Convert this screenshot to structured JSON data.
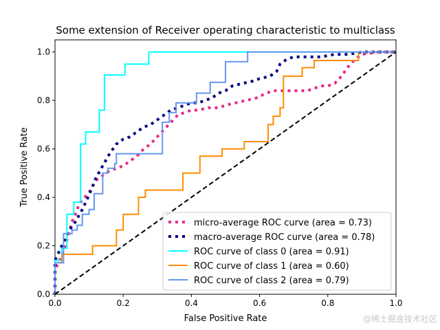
{
  "chart_data": {
    "type": "line",
    "title": "Some extension of Receiver operating characteristic to multiclass",
    "xlabel": "False Positive Rate",
    "ylabel": "True Positive Rate",
    "xlim": [
      0,
      1
    ],
    "ylim": [
      0,
      1.05
    ],
    "xticks": [
      "0.0",
      "0.2",
      "0.4",
      "0.6",
      "0.8",
      "1.0"
    ],
    "yticks": [
      "0.0",
      "0.2",
      "0.4",
      "0.6",
      "0.8",
      "1.0"
    ],
    "grid": false,
    "legend_position": "lower-right",
    "series": [
      {
        "name": "micro-average ROC curve (area = 0.73)",
        "color": "#e7298a",
        "style": "dotted",
        "x": [
          0,
          0,
          0.01,
          0.02,
          0.03,
          0.04,
          0.05,
          0.06,
          0.07,
          0.08,
          0.1,
          0.12,
          0.14,
          0.16,
          0.18,
          0.2,
          0.22,
          0.24,
          0.26,
          0.28,
          0.3,
          0.32,
          0.34,
          0.36,
          0.38,
          0.4,
          0.42,
          0.45,
          0.48,
          0.5,
          0.53,
          0.56,
          0.59,
          0.62,
          0.64,
          0.66,
          0.7,
          0.74,
          0.76,
          0.78,
          0.8,
          0.82,
          0.84,
          0.86,
          0.88,
          0.9,
          0.95,
          1.0
        ],
        "y": [
          0,
          0.1,
          0.13,
          0.16,
          0.2,
          0.25,
          0.3,
          0.33,
          0.37,
          0.39,
          0.42,
          0.47,
          0.49,
          0.51,
          0.52,
          0.53,
          0.55,
          0.57,
          0.6,
          0.62,
          0.65,
          0.68,
          0.71,
          0.74,
          0.75,
          0.76,
          0.76,
          0.77,
          0.77,
          0.78,
          0.79,
          0.8,
          0.81,
          0.83,
          0.84,
          0.84,
          0.84,
          0.84,
          0.85,
          0.86,
          0.86,
          0.87,
          0.9,
          0.94,
          0.97,
          0.99,
          1.0,
          1.0
        ]
      },
      {
        "name": "macro-average ROC curve (area = 0.78)",
        "color": "#000080",
        "style": "dotted",
        "x": [
          0,
          0,
          0.02,
          0.04,
          0.06,
          0.08,
          0.1,
          0.12,
          0.14,
          0.16,
          0.18,
          0.2,
          0.22,
          0.24,
          0.26,
          0.28,
          0.3,
          0.32,
          0.34,
          0.36,
          0.38,
          0.4,
          0.42,
          0.44,
          0.46,
          0.48,
          0.5,
          0.52,
          0.55,
          0.58,
          0.6,
          0.63,
          0.65,
          0.66,
          0.68,
          0.7,
          0.74,
          0.78,
          0.82,
          0.86,
          0.9,
          0.95,
          1.0
        ],
        "y": [
          0,
          0.14,
          0.2,
          0.26,
          0.3,
          0.35,
          0.41,
          0.48,
          0.53,
          0.58,
          0.62,
          0.64,
          0.65,
          0.67,
          0.69,
          0.7,
          0.72,
          0.74,
          0.76,
          0.77,
          0.78,
          0.79,
          0.79,
          0.8,
          0.81,
          0.83,
          0.84,
          0.86,
          0.87,
          0.88,
          0.89,
          0.9,
          0.92,
          0.95,
          0.97,
          0.98,
          0.98,
          0.98,
          0.99,
          0.99,
          1.0,
          1.0,
          1.0
        ]
      },
      {
        "name": "ROC curve of class 0 (area = 0.91)",
        "color": "#00ffff",
        "style": "solid",
        "x": [
          0,
          0,
          0.02,
          0.02,
          0.035,
          0.035,
          0.055,
          0.055,
          0.075,
          0.075,
          0.09,
          0.09,
          0.13,
          0.13,
          0.145,
          0.145,
          0.205,
          0.205,
          0.275,
          0.275,
          1.0
        ],
        "y": [
          0,
          0.14,
          0.14,
          0.19,
          0.19,
          0.33,
          0.33,
          0.38,
          0.38,
          0.62,
          0.62,
          0.67,
          0.67,
          0.76,
          0.76,
          0.905,
          0.905,
          0.95,
          0.95,
          1.0,
          1.0
        ]
      },
      {
        "name": "ROC curve of class 1 (area = 0.60)",
        "color": "#ff8c00",
        "style": "solid",
        "x": [
          0,
          0,
          0.02,
          0.02,
          0.11,
          0.11,
          0.18,
          0.18,
          0.2,
          0.2,
          0.245,
          0.245,
          0.265,
          0.265,
          0.375,
          0.375,
          0.425,
          0.425,
          0.49,
          0.49,
          0.555,
          0.555,
          0.625,
          0.625,
          0.64,
          0.64,
          0.66,
          0.66,
          0.67,
          0.67,
          0.725,
          0.725,
          0.76,
          0.76,
          0.89,
          0.89,
          1.0
        ],
        "y": [
          0,
          0.13,
          0.13,
          0.165,
          0.165,
          0.2,
          0.2,
          0.265,
          0.265,
          0.33,
          0.33,
          0.4,
          0.4,
          0.43,
          0.43,
          0.5,
          0.5,
          0.57,
          0.57,
          0.6,
          0.6,
          0.63,
          0.63,
          0.7,
          0.7,
          0.735,
          0.735,
          0.77,
          0.77,
          0.9,
          0.9,
          0.935,
          0.935,
          0.965,
          0.965,
          1.0,
          1.0
        ]
      },
      {
        "name": "ROC curve of class 2 (area = 0.79)",
        "color": "#6495ed",
        "style": "solid",
        "x": [
          0,
          0,
          0.025,
          0.025,
          0.05,
          0.05,
          0.065,
          0.065,
          0.08,
          0.08,
          0.1,
          0.1,
          0.115,
          0.115,
          0.14,
          0.14,
          0.155,
          0.155,
          0.175,
          0.175,
          0.18,
          0.18,
          0.3,
          0.3,
          0.315,
          0.315,
          0.335,
          0.335,
          0.355,
          0.355,
          0.415,
          0.415,
          0.455,
          0.455,
          0.5,
          0.5,
          0.565,
          0.565,
          0.98,
          0.98,
          1.0
        ],
        "y": [
          0,
          0.13,
          0.13,
          0.25,
          0.25,
          0.265,
          0.265,
          0.285,
          0.285,
          0.33,
          0.33,
          0.35,
          0.35,
          0.415,
          0.415,
          0.5,
          0.5,
          0.52,
          0.52,
          0.54,
          0.54,
          0.58,
          0.58,
          0.58,
          0.58,
          0.71,
          0.71,
          0.75,
          0.75,
          0.79,
          0.79,
          0.83,
          0.83,
          0.875,
          0.875,
          0.96,
          0.96,
          1.0,
          1.0,
          1.0,
          1.0
        ]
      }
    ],
    "reference_line": {
      "x": [
        0,
        1
      ],
      "y": [
        0,
        1
      ],
      "color": "#000000",
      "style": "dashed"
    }
  },
  "watermark": "@稀土掘金技术社区"
}
